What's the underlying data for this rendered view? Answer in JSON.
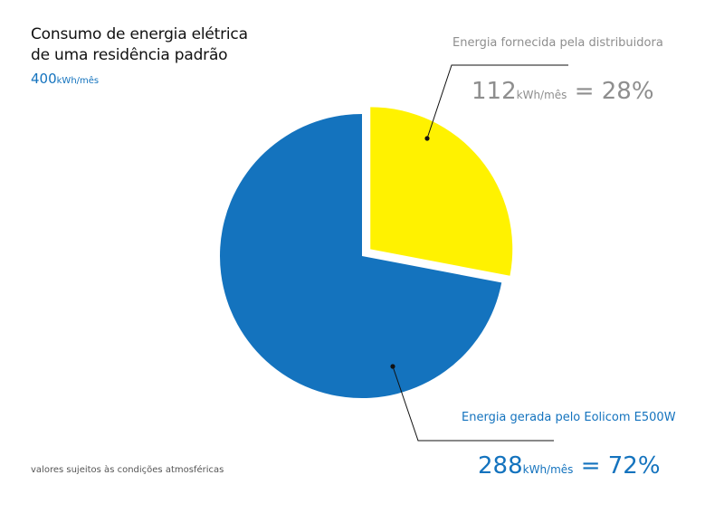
{
  "title": {
    "line1": "Consumo de energia elétrica",
    "line2": "de uma residência padrão"
  },
  "total": {
    "value": "400",
    "unit": "kWh/mês"
  },
  "footnote": "valores sujeitos às condições atmosféricas",
  "colors": {
    "supplier": "#fff200",
    "generated": "#1473be",
    "grey": "#8e8e8e"
  },
  "chart_data": {
    "type": "pie",
    "slices": [
      {
        "label": "Energia fornecida pela distribuidora",
        "value": 112,
        "value_text": "112",
        "unit": "kWh/mês",
        "percent_text": "= 28%",
        "exploded": true
      },
      {
        "label": "Energia gerada pelo Eolicom E500W",
        "value": 288,
        "value_text": "288",
        "unit": "kWh/mês",
        "percent_text": "= 72%",
        "exploded": false
      }
    ]
  }
}
